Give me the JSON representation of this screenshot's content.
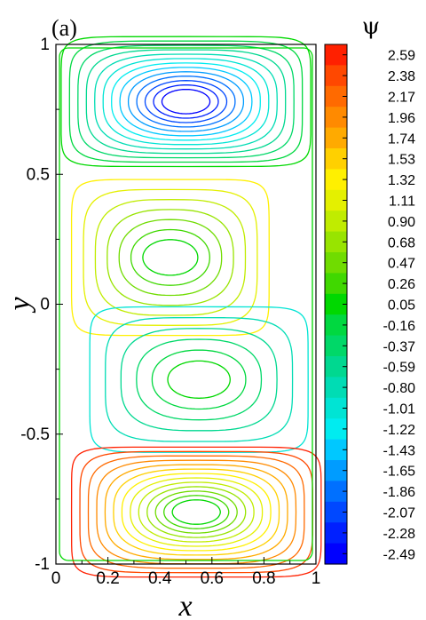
{
  "chart_data": {
    "type": "contour",
    "panel_label": "(a)",
    "xlabel": "x",
    "ylabel": "y",
    "xlim": [
      0,
      1
    ],
    "ylim": [
      -1,
      1
    ],
    "x_ticks": [
      "0",
      "0.2",
      "0.4",
      "0.6",
      "0.8",
      "1"
    ],
    "x_tick_values": [
      0,
      0.2,
      0.4,
      0.6,
      0.8,
      1
    ],
    "y_ticks": [
      "1",
      "0.5",
      "0",
      "-0.5",
      "-1"
    ],
    "y_tick_values": [
      1,
      0.5,
      0,
      -0.5,
      -1
    ],
    "colorbar": {
      "title": "ψ",
      "levels": [
        "2.59",
        "2.38",
        "2.17",
        "1.96",
        "1.74",
        "1.53",
        "1.32",
        "1.11",
        "0.90",
        "0.68",
        "0.47",
        "0.26",
        "0.05",
        "-0.16",
        "-0.37",
        "-0.59",
        "-0.80",
        "-1.01",
        "-1.22",
        "-1.43",
        "-1.65",
        "-1.86",
        "-2.07",
        "-2.28",
        "-2.49"
      ],
      "colors": [
        "#ff2000",
        "#ff4800",
        "#ff6a00",
        "#ff8a00",
        "#ffaa00",
        "#ffd000",
        "#fff000",
        "#e4f000",
        "#c0ec00",
        "#98e400",
        "#70dc00",
        "#40d800",
        "#00d800",
        "#00d840",
        "#00d868",
        "#00d890",
        "#00dcb4",
        "#00e4d4",
        "#00ecf0",
        "#00c8ff",
        "#009cff",
        "#0070ff",
        "#0048ff",
        "#0020ff",
        "#0000ff"
      ]
    },
    "cells": [
      {
        "name": "upper-vortex",
        "cx": 0.5,
        "cy": 0.78,
        "sign": -1
      },
      {
        "name": "upper-middle-vortex",
        "cx": 0.44,
        "cy": 0.18,
        "sign": 1
      },
      {
        "name": "lower-middle-vortex",
        "cx": 0.55,
        "cy": -0.29,
        "sign": -1
      },
      {
        "name": "lower-vortex",
        "cx": 0.54,
        "cy": -0.8,
        "sign": 1
      }
    ],
    "grid": false,
    "legend": "colorbar-right"
  }
}
